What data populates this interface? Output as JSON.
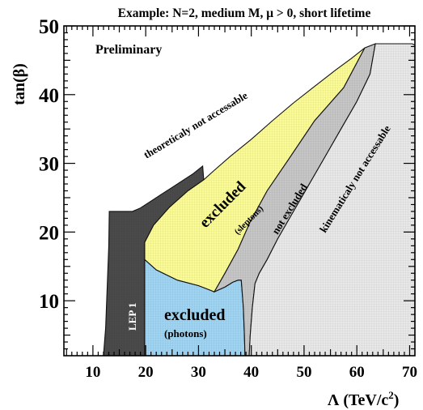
{
  "chart_data": {
    "type": "area",
    "title": "Example: N=2, medium M, μ > 0, short lifetime",
    "xlabel_base": "Λ (TeV/c",
    "xlabel_sup": "2",
    "xlabel_close": ")",
    "ylabel": "tan(β)",
    "xlim": [
      4.5,
      71
    ],
    "ylim": [
      2,
      50
    ],
    "x_ticks": [
      10,
      20,
      30,
      40,
      50,
      60,
      70
    ],
    "y_ticks": [
      10,
      20,
      30,
      40,
      50
    ],
    "x_tick_labels": [
      "10",
      "20",
      "30",
      "40",
      "50",
      "60",
      "70"
    ],
    "y_tick_labels": [
      "10",
      "20",
      "30",
      "40",
      "50"
    ],
    "grid": false,
    "regions": [
      {
        "key": "lep1",
        "label": "LEP 1",
        "color": "#4a4a4a",
        "polygon": [
          [
            12.0,
            2
          ],
          [
            12.4,
            6
          ],
          [
            12.6,
            10
          ],
          [
            12.8,
            14
          ],
          [
            13.0,
            18
          ],
          [
            13.1,
            23
          ],
          [
            15.0,
            23
          ],
          [
            17.5,
            23
          ],
          [
            19,
            23.5
          ],
          [
            21,
            24.5
          ],
          [
            23,
            25.5
          ],
          [
            25,
            26.5
          ],
          [
            27,
            27.5
          ],
          [
            29,
            28.5
          ],
          [
            30.8,
            29.6
          ],
          [
            31.0,
            27.6
          ],
          [
            28,
            26.0
          ],
          [
            24.5,
            23.6
          ],
          [
            21.5,
            21
          ],
          [
            19.8,
            18.5
          ],
          [
            19.8,
            16
          ],
          [
            19.8,
            10
          ],
          [
            19.8,
            6
          ],
          [
            19.8,
            2
          ]
        ]
      },
      {
        "key": "photons",
        "label_main": "excluded",
        "label_sub": "(photons)",
        "color": "#9fd4f2",
        "polygon": [
          [
            19.8,
            2
          ],
          [
            19.8,
            16
          ],
          [
            22,
            14.5
          ],
          [
            26,
            13
          ],
          [
            30,
            12.2
          ],
          [
            33,
            11.3
          ],
          [
            35,
            12
          ],
          [
            36.5,
            12.7
          ],
          [
            37.5,
            13
          ],
          [
            38.1,
            13
          ],
          [
            38.5,
            9
          ],
          [
            38.7,
            5
          ],
          [
            38.8,
            2
          ]
        ]
      },
      {
        "key": "sleptons",
        "label_main": "excluded",
        "label_sub": "(sleptons)",
        "color": "#fbfb96",
        "polygon": [
          [
            19.8,
            16
          ],
          [
            19.8,
            18.5
          ],
          [
            21.5,
            21
          ],
          [
            24.5,
            23.6
          ],
          [
            28,
            26.0
          ],
          [
            31.0,
            27.6
          ],
          [
            33,
            29
          ],
          [
            36,
            31
          ],
          [
            40,
            33.5
          ],
          [
            44,
            36.2
          ],
          [
            48,
            38.8
          ],
          [
            52,
            41.2
          ],
          [
            56,
            43.6
          ],
          [
            59,
            45.3
          ],
          [
            61.5,
            46.8
          ],
          [
            57.5,
            41.0
          ],
          [
            52,
            36.2
          ],
          [
            47,
            30.5
          ],
          [
            43,
            26.0
          ],
          [
            39.8,
            21.5
          ],
          [
            37.5,
            17.5
          ],
          [
            35,
            14
          ],
          [
            33,
            11.3
          ],
          [
            30,
            12.2
          ],
          [
            26,
            13
          ],
          [
            22,
            14.5
          ]
        ]
      },
      {
        "key": "not_excluded",
        "label": "not excluded",
        "color": "#c6c6c6",
        "polygon": [
          [
            33,
            11.3
          ],
          [
            35,
            14
          ],
          [
            37.5,
            17.5
          ],
          [
            39.8,
            21.5
          ],
          [
            43,
            26.0
          ],
          [
            47,
            30.5
          ],
          [
            52,
            36.2
          ],
          [
            57.5,
            41.0
          ],
          [
            61.5,
            46.8
          ],
          [
            63.5,
            47.4
          ],
          [
            62.5,
            43
          ],
          [
            60,
            39
          ],
          [
            57,
            35
          ],
          [
            54,
            31
          ],
          [
            51,
            27
          ],
          [
            48,
            23
          ],
          [
            45,
            19
          ],
          [
            43,
            16
          ],
          [
            41.5,
            14
          ],
          [
            40.7,
            12.5
          ],
          [
            40.2,
            9
          ],
          [
            39.8,
            5
          ],
          [
            39.6,
            2
          ],
          [
            38.8,
            2
          ],
          [
            38.7,
            5
          ],
          [
            38.5,
            9
          ],
          [
            38.1,
            13
          ],
          [
            37.5,
            13
          ],
          [
            36.5,
            12.7
          ],
          [
            35,
            12
          ]
        ]
      },
      {
        "key": "kinematic",
        "label": "kinematicaly not accessable",
        "color": "#e8e8e8",
        "polygon": [
          [
            39.6,
            2
          ],
          [
            39.8,
            5
          ],
          [
            40.2,
            9
          ],
          [
            40.7,
            12.5
          ],
          [
            41.5,
            14
          ],
          [
            43,
            16
          ],
          [
            45,
            19
          ],
          [
            48,
            23
          ],
          [
            51,
            27
          ],
          [
            54,
            31
          ],
          [
            57,
            35
          ],
          [
            60,
            39
          ],
          [
            62.5,
            43
          ],
          [
            63.5,
            47.4
          ],
          [
            66,
            47.4
          ],
          [
            70.5,
            47.4
          ],
          [
            71,
            47.2
          ],
          [
            71,
            2
          ]
        ]
      }
    ],
    "annotations": {
      "preliminary": "Preliminary",
      "theoretical": "theoreticaly not accessable"
    }
  }
}
